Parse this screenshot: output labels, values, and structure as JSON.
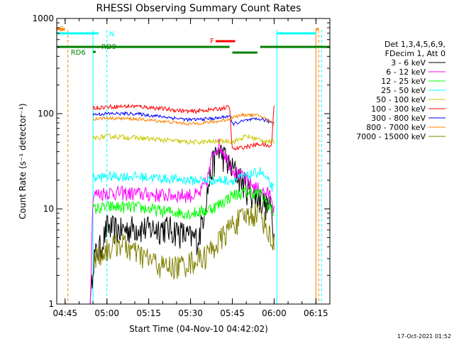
{
  "chart_data": {
    "type": "line",
    "title": "RHESSI Observing Summary Count Rates",
    "xlabel": "Start Time (04-Nov-10 04:42:02)",
    "ylabel": "Count Rate (s⁻¹ detector⁻¹)",
    "y_scale": "log",
    "ylim": [
      1,
      1000
    ],
    "xlim": [
      "04:42",
      "06:20"
    ],
    "x_ticks": [
      "04:45",
      "05:00",
      "05:15",
      "05:30",
      "05:45",
      "06:00",
      "06:15"
    ],
    "y_ticks": [
      "1",
      "10",
      "100",
      "1000"
    ],
    "timestamp": "17-Oct-2021 01:52",
    "legend": {
      "position": "right",
      "header": [
        "Det 1,3,4,5,6,9,",
        "FDecim 1, Att 0"
      ]
    },
    "series": [
      {
        "name": "3 - 6 keV",
        "color": "#000000",
        "x": [
          "04:54",
          "04:55",
          "04:58",
          "05:00",
          "05:05",
          "05:10",
          "05:15",
          "05:20",
          "05:25",
          "05:30",
          "05:33",
          "05:36",
          "05:38",
          "05:40",
          "05:42",
          "05:44",
          "05:46",
          "05:48",
          "05:50",
          "05:53",
          "05:56",
          "05:59",
          "06:00"
        ],
        "y": [
          0.8,
          3.0,
          4.2,
          6.5,
          6.0,
          6.5,
          6.2,
          6.5,
          6.0,
          5.0,
          5.0,
          15,
          30,
          42,
          36,
          28,
          25,
          21,
          17,
          14,
          12,
          10,
          5
        ]
      },
      {
        "name": "6 - 12 keV",
        "color": "#ff00ff",
        "x": [
          "04:54",
          "04:55",
          "05:00",
          "05:10",
          "05:20",
          "05:30",
          "05:33",
          "05:36",
          "05:38",
          "05:40",
          "05:42",
          "05:44",
          "05:46",
          "05:48",
          "05:50",
          "05:53",
          "05:56",
          "05:59",
          "06:00"
        ],
        "y": [
          1.0,
          14,
          15,
          14.5,
          14,
          14,
          14,
          20,
          38,
          48,
          40,
          30,
          25,
          22,
          20,
          17,
          15,
          14,
          10
        ]
      },
      {
        "name": "12 - 25 keV",
        "color": "#00ff00",
        "x": [
          "04:55",
          "05:00",
          "05:10",
          "05:20",
          "05:30",
          "05:35",
          "05:40",
          "05:45",
          "05:50",
          "05:55",
          "06:00"
        ],
        "y": [
          10,
          10.5,
          10.5,
          9.5,
          9.0,
          9.5,
          11,
          14,
          15,
          14.5,
          9
        ]
      },
      {
        "name": "25 - 50 keV",
        "color": "#00ffff",
        "x": [
          "04:55",
          "05:00",
          "05:10",
          "05:20",
          "05:30",
          "05:40",
          "05:45",
          "05:50",
          "05:55",
          "06:00"
        ],
        "y": [
          21,
          22,
          22,
          21,
          20,
          20,
          20,
          22,
          25,
          16
        ]
      },
      {
        "name": "50 - 100 keV",
        "color": "#c8c800",
        "x": [
          "04:55",
          "05:00",
          "05:10",
          "05:20",
          "05:30",
          "05:40",
          "05:44",
          "05:45",
          "05:50",
          "05:55",
          "06:00"
        ],
        "y": [
          55,
          58,
          56,
          53,
          50,
          51,
          52,
          50,
          58,
          53,
          50
        ]
      },
      {
        "name": "100 - 300 keV",
        "color": "#ff0000",
        "x": [
          "04:55",
          "05:00",
          "05:10",
          "05:20",
          "05:30",
          "05:40",
          "05:44",
          "05:45",
          "05:50",
          "05:55",
          "05:59",
          "06:00"
        ],
        "y": [
          115,
          118,
          120,
          113,
          105,
          112,
          118,
          42,
          45,
          48,
          45,
          125
        ]
      },
      {
        "name": "300 - 800 keV",
        "color": "#0000ff",
        "x": [
          "04:55",
          "05:00",
          "05:10",
          "05:20",
          "05:30",
          "05:40",
          "05:44",
          "05:45",
          "05:50",
          "05:55",
          "06:00"
        ],
        "y": [
          98,
          100,
          100,
          93,
          86,
          90,
          95,
          78,
          85,
          88,
          80
        ]
      },
      {
        "name": "800 - 7000 keV",
        "color": "#ff8000",
        "x": [
          "04:55",
          "05:00",
          "05:10",
          "05:20",
          "05:30",
          "05:40",
          "05:44",
          "05:45",
          "05:50",
          "05:55",
          "06:00"
        ],
        "y": [
          88,
          90,
          88,
          83,
          78,
          83,
          88,
          92,
          98,
          95,
          78
        ]
      },
      {
        "name": "7000 - 15000 keV",
        "color": "#808000",
        "x": [
          "04:55",
          "05:00",
          "05:05",
          "05:10",
          "05:15",
          "05:20",
          "05:25",
          "05:30",
          "05:35",
          "05:40",
          "05:45",
          "05:50",
          "05:55",
          "06:00"
        ],
        "y": [
          3.0,
          3.8,
          4.5,
          3.5,
          3.0,
          2.5,
          2.5,
          2.8,
          3.2,
          4.5,
          7.0,
          8.5,
          9.5,
          4.0
        ]
      }
    ],
    "state_bars": [
      {
        "label": "S",
        "color": "#ff8000"
      },
      {
        "label": "N",
        "color": "#00ffff"
      },
      {
        "label": "F",
        "color": "#ff0000"
      },
      {
        "label": "RD9",
        "color": "#008000"
      },
      {
        "label": "RD6",
        "color": "#008000"
      }
    ]
  }
}
